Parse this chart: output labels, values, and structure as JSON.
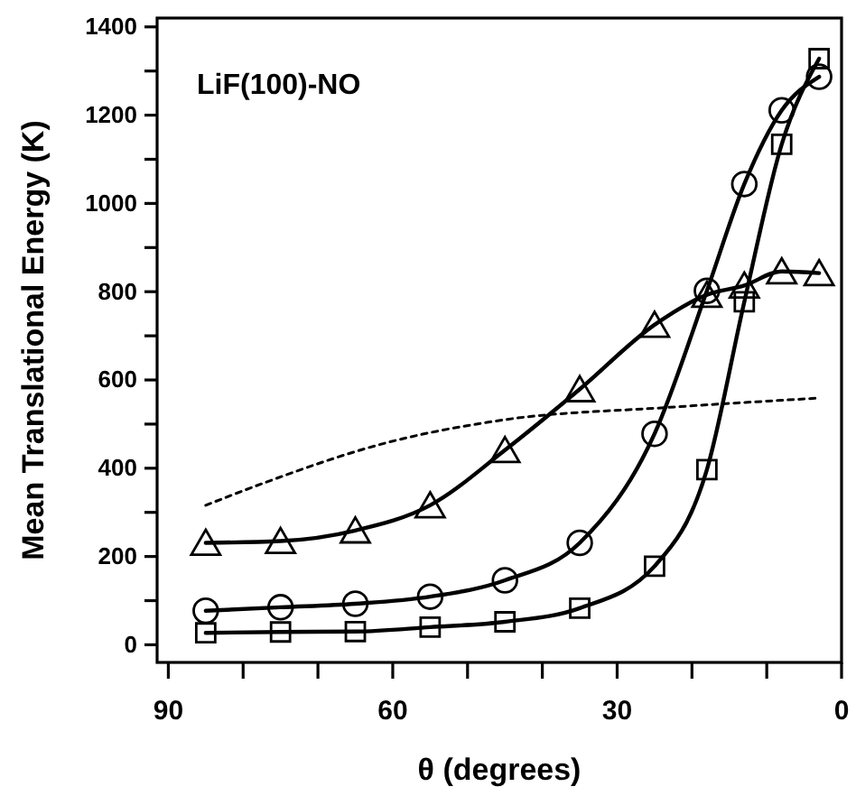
{
  "chart_data": {
    "type": "line",
    "xlabel": "θ (degrees)",
    "ylabel": "Mean Translational Energy (K)",
    "annotations": [
      "LiF(100)-NO"
    ],
    "xlim": [
      91.5,
      0
    ],
    "ylim": [
      -40,
      1420
    ],
    "xticks": [
      90,
      {
        "value": 80,
        "label": null
      },
      {
        "value": 70,
        "label": null
      },
      60,
      {
        "value": 50,
        "label": null
      },
      {
        "value": 40,
        "label": null
      },
      30,
      {
        "value": 20,
        "label": null
      },
      {
        "value": 10,
        "label": null
      },
      0
    ],
    "yticks": [
      0,
      {
        "value": 100,
        "label": null
      },
      200,
      {
        "value": 300,
        "label": null
      },
      400,
      {
        "value": 500,
        "label": null
      },
      600,
      {
        "value": 700,
        "label": null
      },
      800,
      {
        "value": 900,
        "label": null
      },
      1000,
      {
        "value": 1100,
        "label": null
      },
      1200,
      {
        "value": 1300,
        "label": null
      },
      1400
    ],
    "grid": false,
    "series": [
      {
        "marker": "triangle",
        "color": "#000000",
        "line_style": "solid",
        "x": [
          85,
          75,
          65,
          55,
          45,
          35,
          25,
          18,
          13,
          8,
          3
        ],
        "values": [
          231,
          235,
          259,
          316,
          441,
          579,
          725,
          793,
          814,
          846,
          842
        ]
      },
      {
        "marker": "circle",
        "color": "#000000",
        "line_style": "solid",
        "x": [
          85,
          75,
          65,
          55,
          45,
          35,
          25,
          18,
          13,
          8,
          3
        ],
        "values": [
          77,
          85,
          93,
          109,
          146,
          231,
          478,
          802,
          1044,
          1211,
          1287
        ]
      },
      {
        "marker": "square",
        "color": "#000000",
        "line_style": "solid",
        "x": [
          85,
          75,
          65,
          55,
          45,
          35,
          25,
          18,
          13,
          8,
          3
        ],
        "values": [
          27,
          29,
          30,
          40,
          52,
          83,
          178,
          397,
          777,
          1134,
          1328
        ]
      },
      {
        "marker": "none",
        "color": "#000000",
        "line_style": "dotted",
        "x": [
          85,
          77,
          61,
          45,
          23,
          3
        ],
        "values": [
          316,
          368,
          457,
          510,
          538,
          559
        ]
      }
    ]
  }
}
